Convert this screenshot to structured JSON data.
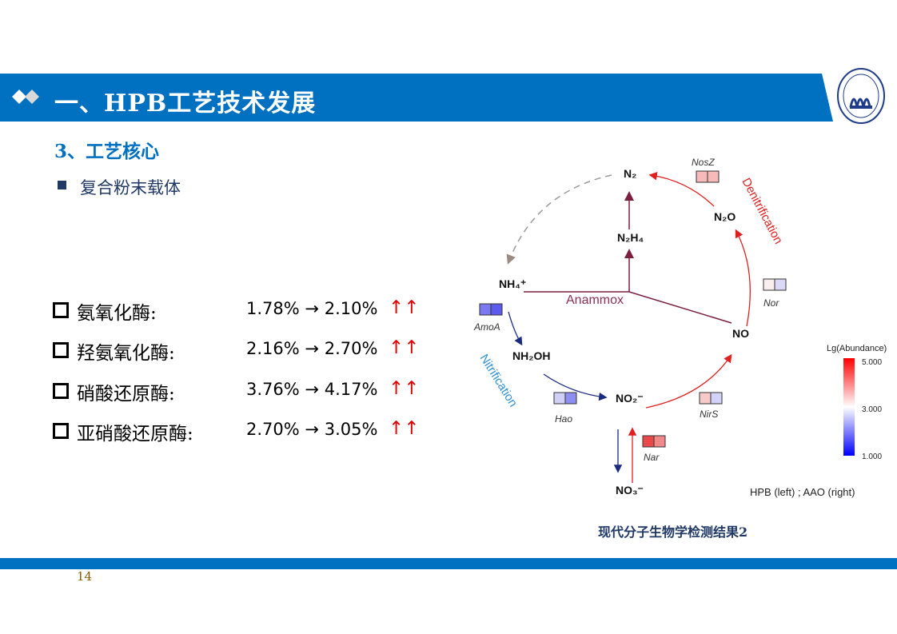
{
  "header": {
    "title": "一、HPB工艺技术发展",
    "logo_text": "TONGJI UNIVERSITY 1907",
    "accent": "#0070c0"
  },
  "section": {
    "subtitle": "3、工艺核心",
    "bullet": "复合粉末载体"
  },
  "enzymes": [
    {
      "name": "氨氧化酶:",
      "from": "1.78%",
      "to": "2.10%",
      "arrows": "↑↑",
      "arrow_sym": "→"
    },
    {
      "name": "羟氨氧化酶:",
      "from": "2.16%",
      "to": "2.70%",
      "arrows": "↑↑",
      "arrow_sym": "→"
    },
    {
      "name": "硝酸还原酶:",
      "from": "3.76%",
      "to": "4.17%",
      "arrows": "↑↑",
      "arrow_sym": "→"
    },
    {
      "name": "亚硝酸还原酶:",
      "from": "2.70%",
      "to": "3.05%",
      "arrows": "↑↑",
      "arrow_sym": "→"
    }
  ],
  "diagram": {
    "nodes": {
      "n2": "N₂",
      "n2h4": "N₂H₄",
      "nh4": "NH₄⁺",
      "nh2oh": "NH₂OH",
      "no2": "NO₂⁻",
      "no3": "NO₃⁻",
      "no": "NO",
      "n2o": "N₂O"
    },
    "processes": {
      "anammox": "Anammox",
      "nitrification": "Nitrification",
      "denitrification": "Denitrification"
    },
    "genes": {
      "amoa": "AmoA",
      "hao": "Hao",
      "nirs": "NirS",
      "nar": "Nar",
      "nor": "Nor",
      "nosz": "NosZ"
    },
    "heat_colors": {
      "amoa": [
        "#7b79f1",
        "#5d5bee"
      ],
      "hao": [
        "#cfcff7",
        "#8e8df2"
      ],
      "nirs": [
        "#f6caca",
        "#d3d3f7"
      ],
      "nar": [
        "#e84a4a",
        "#f08a8a"
      ],
      "nor": [
        "#fbeeee",
        "#dadaf8"
      ],
      "nosz": [
        "#f6baba",
        "#f6baba"
      ]
    },
    "legend": {
      "title": "Lg(Abundance)",
      "max": "5.000",
      "mid": "3.000",
      "min": "1.000",
      "note": "HPB (left) ; AAO (right)",
      "colors": [
        "#ff0000",
        "#ffffff",
        "#0000ff"
      ]
    }
  },
  "caption": "现代分子生物学检测结果2",
  "page_number": "14"
}
